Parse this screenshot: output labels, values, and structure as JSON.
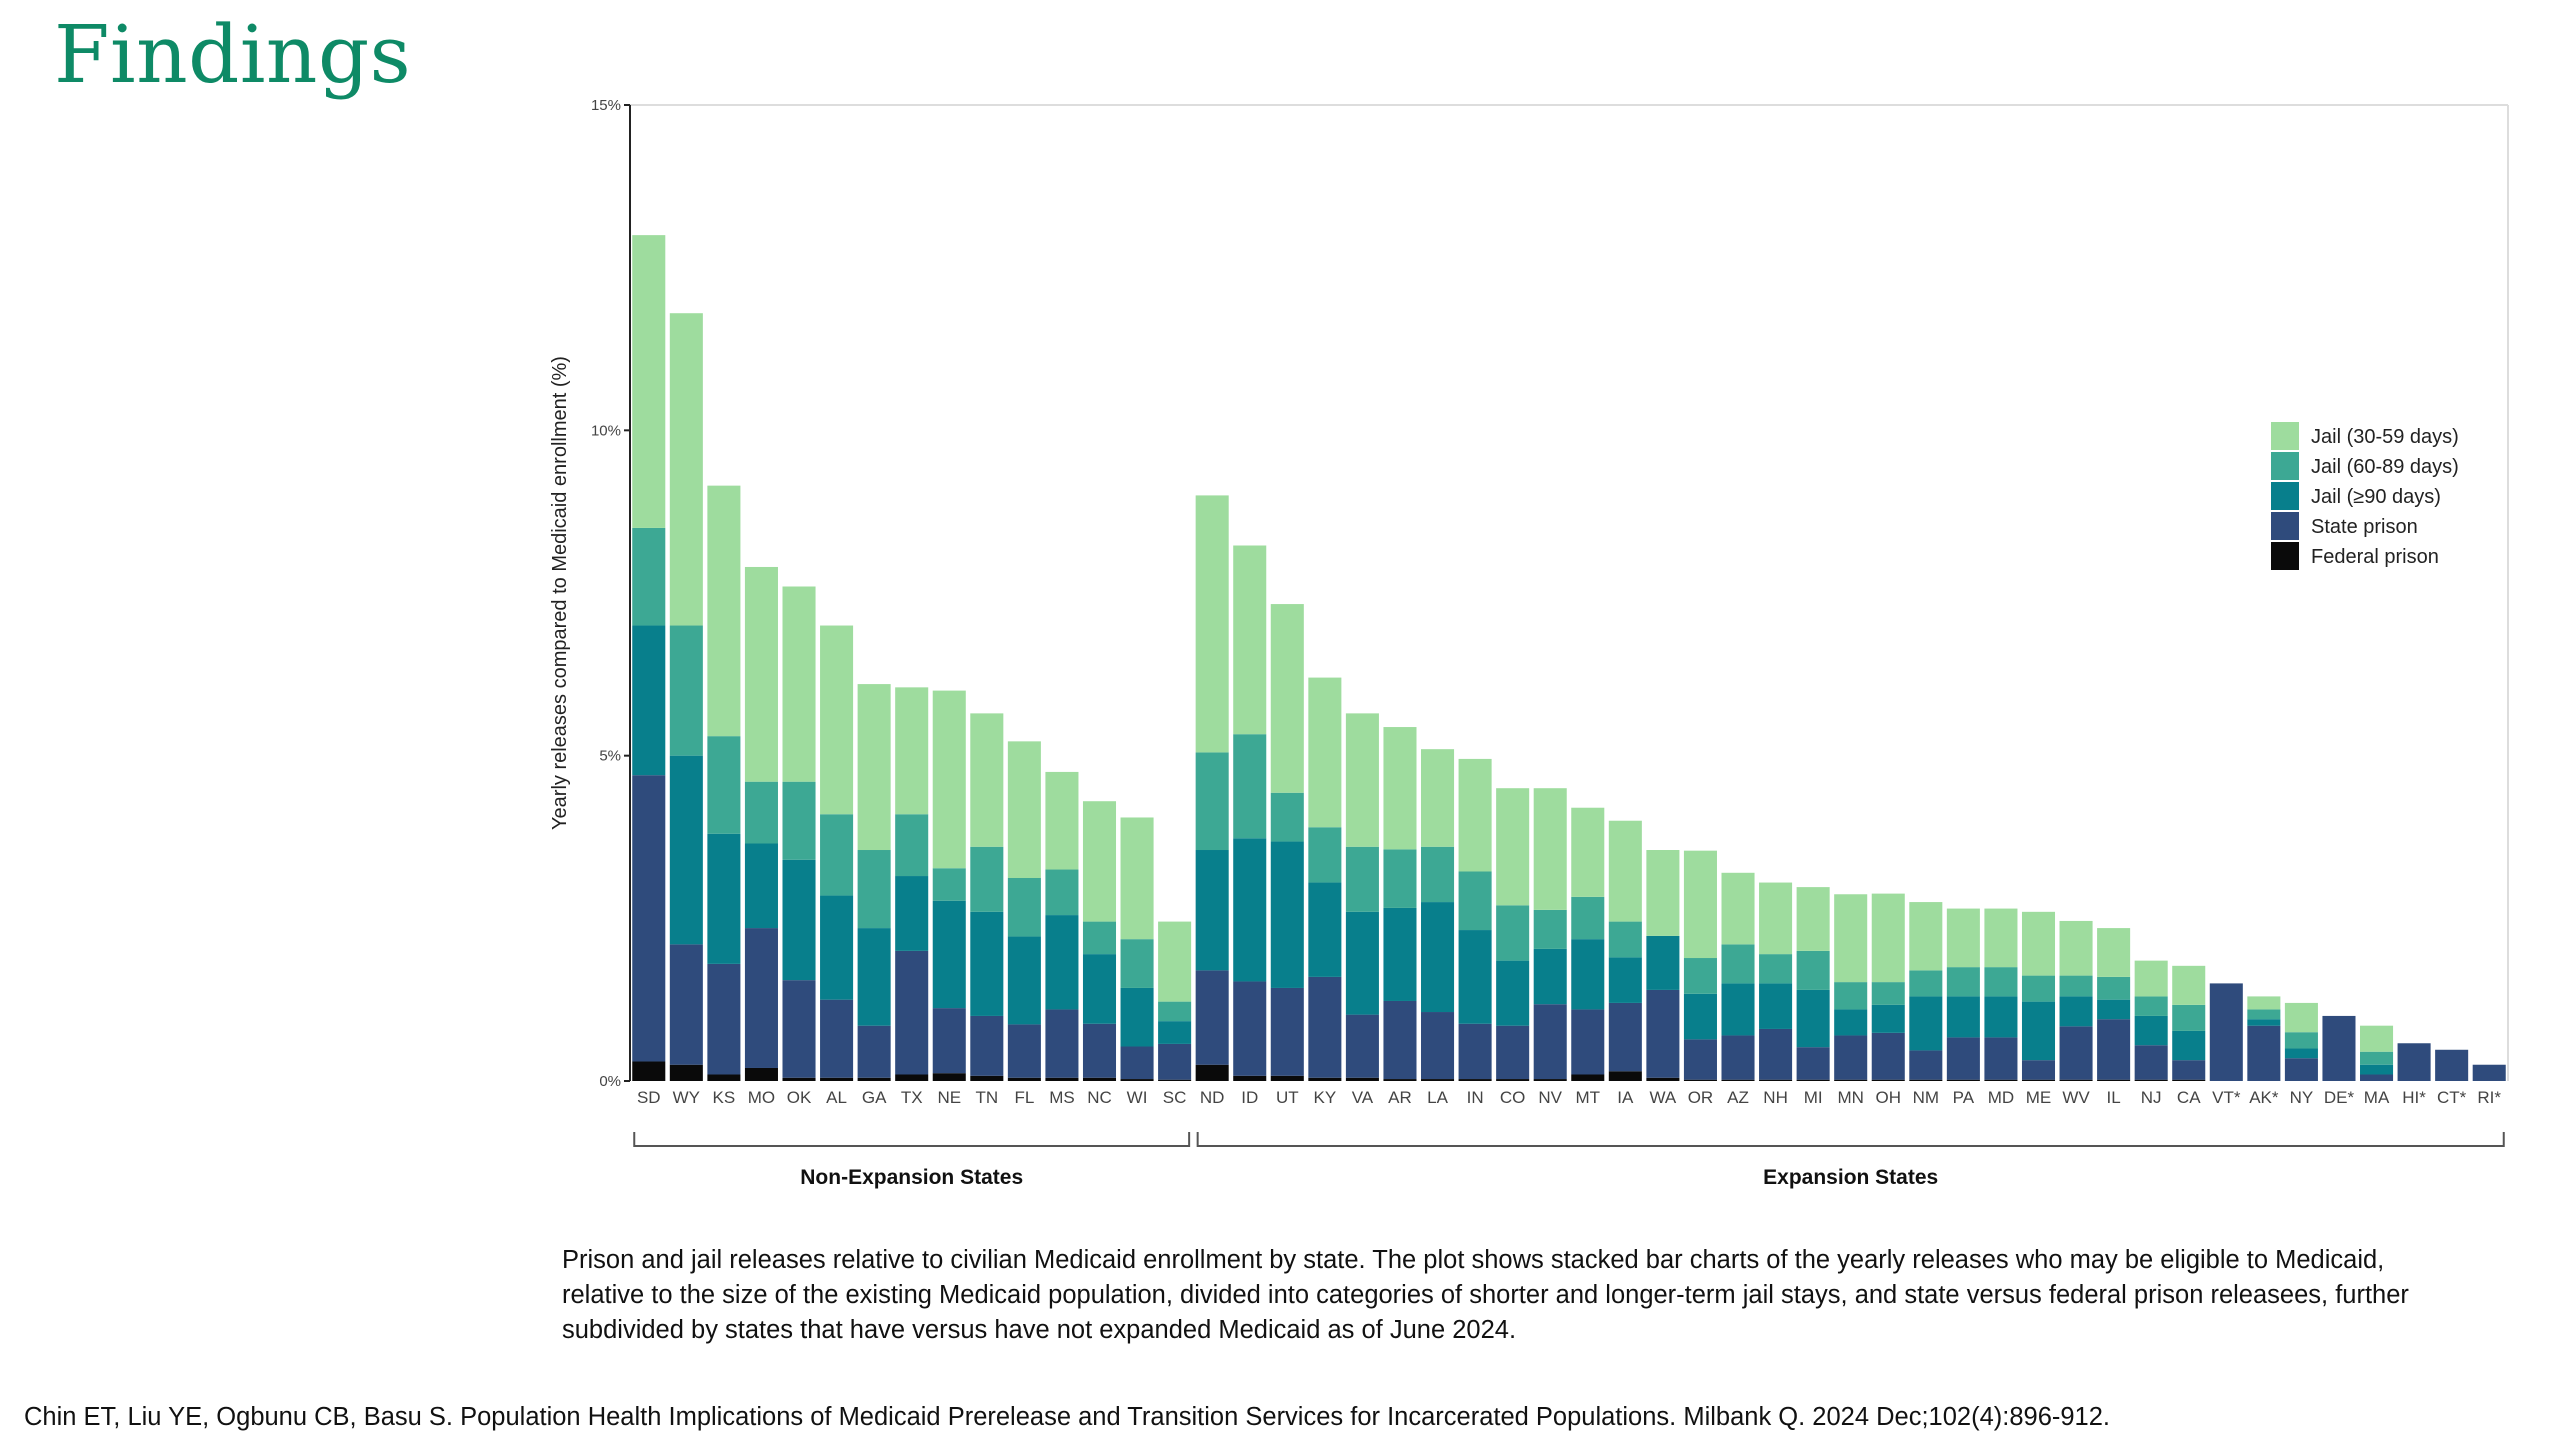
{
  "slide": {
    "title": "Findings",
    "caption": "Prison and jail releases relative to civilian Medicaid enrollment by state. The plot shows stacked bar charts of the yearly releases who may be eligible to Medicaid, relative to the size of the existing Medicaid population, divided into categories of shorter and longer-term jail stays, and state versus federal prison releasees, further subdivided by states that have versus have not expanded Medicaid as of June 2024.",
    "citation": "Chin ET, Liu YE, Ogbunu CB, Basu S. Population Health Implications of Medicaid Prerelease and Transition Services for Incarcerated Populations. Milbank Q. 2024 Dec;102(4):896-912."
  },
  "chart_data": {
    "type": "bar",
    "stacked": true,
    "title": "",
    "xlabel": "",
    "ylabel": "Yearly releases compared to Medicaid enrollment (%)",
    "ylim": [
      0,
      15
    ],
    "yticks": [
      0,
      5,
      10,
      15
    ],
    "ytick_labels": [
      "0%",
      "5%",
      "10%",
      "15%"
    ],
    "grid": false,
    "legend_position": "right",
    "groups": [
      {
        "label": "Non-Expansion States",
        "start": 0,
        "end": 14
      },
      {
        "label": "Expansion States",
        "start": 15,
        "end": 49
      }
    ],
    "categories": [
      "SD",
      "WY",
      "KS",
      "MO",
      "OK",
      "AL",
      "GA",
      "TX",
      "NE",
      "TN",
      "FL",
      "MS",
      "NC",
      "WI",
      "SC",
      "ND",
      "ID",
      "UT",
      "KY",
      "VA",
      "AR",
      "LA",
      "IN",
      "CO",
      "NV",
      "MT",
      "IA",
      "WA",
      "OR",
      "AZ",
      "NH",
      "MI",
      "MN",
      "OH",
      "NM",
      "PA",
      "MD",
      "ME",
      "WV",
      "IL",
      "NJ",
      "CA",
      "VT*",
      "AK*",
      "NY",
      "DE*",
      "MA",
      "HI*",
      "CT*",
      "RI*"
    ],
    "series": [
      {
        "name": "Federal prison",
        "color": "#0a0a0a",
        "values": [
          0.3,
          0.25,
          0.1,
          0.2,
          0.05,
          0.05,
          0.05,
          0.1,
          0.12,
          0.08,
          0.05,
          0.05,
          0.05,
          0.03,
          0.02,
          0.25,
          0.08,
          0.08,
          0.05,
          0.05,
          0.03,
          0.03,
          0.03,
          0.03,
          0.03,
          0.1,
          0.15,
          0.05,
          0.02,
          0.02,
          0.02,
          0.02,
          0.02,
          0.02,
          0.02,
          0.02,
          0.02,
          0.02,
          0.02,
          0.02,
          0.02,
          0.02,
          0,
          0,
          0,
          0,
          0,
          0,
          0,
          0
        ]
      },
      {
        "name": "State prison",
        "color": "#2f4b7c",
        "values": [
          4.4,
          1.85,
          1.7,
          2.15,
          1.5,
          1.2,
          0.8,
          1.9,
          1.0,
          0.92,
          0.82,
          1.05,
          0.83,
          0.5,
          0.55,
          1.45,
          1.45,
          1.35,
          1.55,
          0.97,
          1.2,
          1.03,
          0.85,
          0.82,
          1.15,
          1.0,
          1.05,
          1.35,
          0.62,
          0.68,
          0.78,
          0.5,
          0.68,
          0.72,
          0.45,
          0.65,
          0.65,
          0.3,
          0.82,
          0.93,
          0.53,
          0.3,
          1.5,
          0.85,
          0.35,
          1.0,
          0.1,
          0.58,
          0.48,
          0.25
        ]
      },
      {
        "name": "Jail (≥90 days)",
        "color": "#087f8c",
        "values": [
          2.3,
          2.9,
          2.0,
          1.3,
          1.85,
          1.6,
          1.5,
          1.15,
          1.65,
          1.6,
          1.35,
          1.45,
          1.07,
          0.9,
          0.35,
          1.85,
          2.2,
          2.25,
          1.45,
          1.58,
          1.43,
          1.69,
          1.44,
          1.0,
          0.85,
          1.08,
          0.7,
          0.83,
          0.7,
          0.8,
          0.7,
          0.88,
          0.4,
          0.43,
          0.83,
          0.63,
          0.63,
          0.9,
          0.46,
          0.3,
          0.45,
          0.45,
          0,
          0.1,
          0.15,
          0,
          0.15,
          0,
          0,
          0
        ]
      },
      {
        "name": "Jail (60-89 days)",
        "color": "#3da894",
        "values": [
          1.5,
          2.0,
          1.5,
          0.95,
          1.2,
          1.25,
          1.2,
          0.95,
          0.5,
          1.0,
          0.9,
          0.7,
          0.5,
          0.75,
          0.3,
          1.5,
          1.6,
          0.75,
          0.85,
          1.0,
          0.9,
          0.85,
          0.9,
          0.85,
          0.6,
          0.65,
          0.55,
          0,
          0.55,
          0.6,
          0.45,
          0.6,
          0.42,
          0.35,
          0.4,
          0.45,
          0.45,
          0.4,
          0.32,
          0.35,
          0.3,
          0.4,
          0,
          0.15,
          0.25,
          0,
          0.2,
          0,
          0,
          0
        ]
      },
      {
        "name": "Jail (30-59 days)",
        "color": "#9edc9e",
        "values": [
          4.5,
          4.8,
          3.85,
          3.3,
          3.0,
          2.9,
          2.55,
          1.95,
          2.73,
          2.05,
          2.1,
          1.5,
          1.85,
          1.87,
          1.23,
          3.95,
          2.9,
          2.9,
          2.3,
          2.05,
          1.88,
          1.5,
          1.73,
          1.8,
          1.87,
          1.37,
          1.55,
          1.32,
          1.65,
          1.1,
          1.1,
          0.98,
          1.35,
          1.36,
          1.05,
          0.9,
          0.9,
          0.98,
          0.84,
          0.75,
          0.55,
          0.6,
          0,
          0.2,
          0.45,
          0,
          0.4,
          0,
          0,
          0
        ]
      }
    ]
  }
}
